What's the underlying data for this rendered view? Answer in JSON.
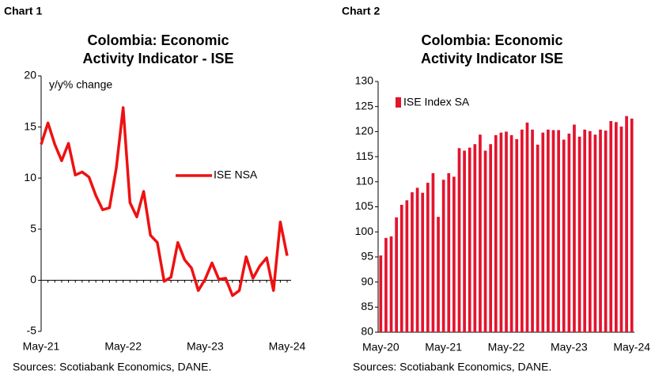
{
  "chart_data": [
    {
      "type": "line",
      "label": "Chart 1",
      "title": [
        "Colombia: Economic",
        "Activity Indicator - ISE"
      ],
      "annotation": "y/y% change",
      "source": "Sources: Scotiabank Economics, DANE.",
      "categories": [
        "May-21",
        null,
        null,
        null,
        null,
        null,
        null,
        null,
        null,
        null,
        null,
        null,
        "May-22",
        null,
        null,
        null,
        null,
        null,
        null,
        null,
        null,
        null,
        null,
        null,
        "May-23",
        null,
        null,
        null,
        null,
        null,
        null,
        null,
        null,
        null,
        null,
        null,
        "May-24"
      ],
      "series": [
        {
          "name": "ISE NSA",
          "color": "#ee1111",
          "values": [
            13.3,
            15.4,
            13.3,
            11.7,
            13.4,
            10.3,
            10.6,
            10.1,
            8.3,
            6.9,
            7.1,
            11,
            16.9,
            7.6,
            6.2,
            8.7,
            4.4,
            3.7,
            -0.1,
            0.3,
            3.7,
            2.0,
            1.2,
            -1.0,
            0.1,
            1.7,
            0.1,
            0.2,
            -1.5,
            -1.0,
            2.3,
            0.2,
            1.4,
            2.2,
            -1.0,
            5.7,
            2.4
          ]
        }
      ],
      "ylim": [
        -5,
        20
      ],
      "yticks": [
        -5,
        0,
        5,
        10,
        15,
        20
      ],
      "legend": "center-right"
    },
    {
      "type": "bar",
      "label": "Chart 2",
      "title": [
        "Colombia: Economic",
        "Activity Indicator ISE"
      ],
      "source": "Sources: Scotiabank Economics, DANE.",
      "categories": [
        "May-20",
        null,
        null,
        null,
        null,
        null,
        null,
        null,
        null,
        null,
        null,
        null,
        "May-21",
        null,
        null,
        null,
        null,
        null,
        null,
        null,
        null,
        null,
        null,
        null,
        "May-22",
        null,
        null,
        null,
        null,
        null,
        null,
        null,
        null,
        null,
        null,
        null,
        "May-23",
        null,
        null,
        null,
        null,
        null,
        null,
        null,
        null,
        null,
        null,
        null,
        "May-24"
      ],
      "series": [
        {
          "name": "ISE Index SA",
          "color": "#e3142d",
          "values": [
            95.3,
            98.8,
            99.1,
            102.9,
            105.4,
            106.3,
            107.9,
            108.8,
            107.8,
            109.8,
            111.7,
            103.0,
            110.4,
            111.7,
            111.0,
            116.7,
            116.2,
            116.8,
            117.5,
            119.4,
            116.2,
            117.5,
            119.3,
            119.8,
            120.0,
            119.3,
            118.5,
            120.4,
            121.8,
            120.4,
            117.4,
            119.8,
            120.4,
            120.3,
            120.3,
            118.4,
            119.6,
            121.4,
            119.0,
            120.4,
            120.1,
            119.4,
            120.4,
            120.2,
            122.1,
            121.9,
            121.0,
            123.1,
            122.6
          ]
        }
      ],
      "ylim": [
        80,
        130
      ],
      "yticks": [
        80,
        85,
        90,
        95,
        100,
        105,
        110,
        115,
        120,
        125,
        130
      ],
      "legend": "upper-left"
    }
  ]
}
